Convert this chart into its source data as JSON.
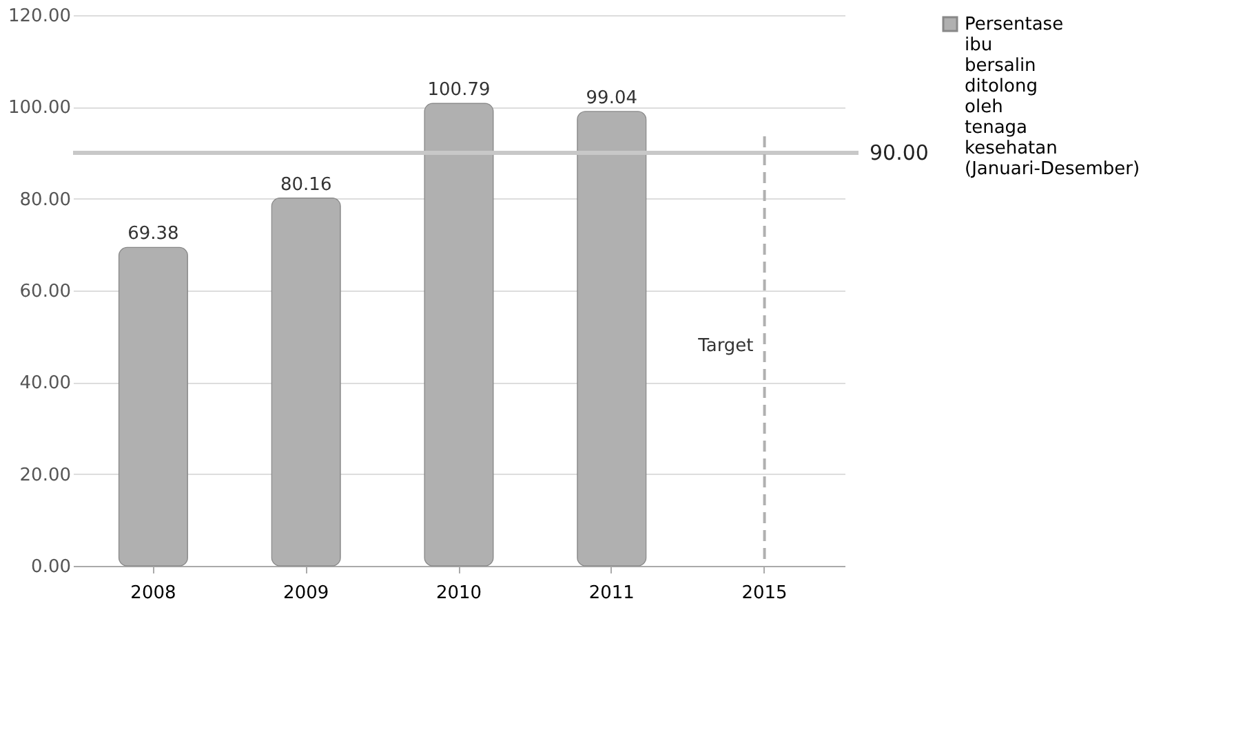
{
  "chart_data": {
    "type": "bar",
    "categories": [
      "2008",
      "2009",
      "2010",
      "2011",
      "2015"
    ],
    "series": [
      {
        "name": "Persentase ibu bersalin ditolong oleh tenaga kesehatan (Januari-Desember)",
        "color": "#b0b0b0",
        "values": [
          69.38,
          80.16,
          100.79,
          99.04,
          null
        ]
      }
    ],
    "value_labels": [
      "69.38",
      "80.16",
      "100.79",
      "99.04",
      null
    ],
    "ylim": [
      0,
      120
    ],
    "yticks": [
      {
        "value": 0,
        "label": "0.00"
      },
      {
        "value": 20,
        "label": "20.00"
      },
      {
        "value": 40,
        "label": "40.00"
      },
      {
        "value": 60,
        "label": "60.00"
      },
      {
        "value": 80,
        "label": "80.00"
      },
      {
        "value": 100,
        "label": "100.00"
      },
      {
        "value": 120,
        "label": "120.00"
      }
    ],
    "ref_lines": [
      {
        "axis": "y",
        "value": 90,
        "label": "90.00",
        "color": "#c8c8c8"
      },
      {
        "axis": "x",
        "value": "2015",
        "label": "Target",
        "color": "#b0b0b0",
        "line_style": "dashed"
      }
    ],
    "grid": "y",
    "legend": "right"
  }
}
